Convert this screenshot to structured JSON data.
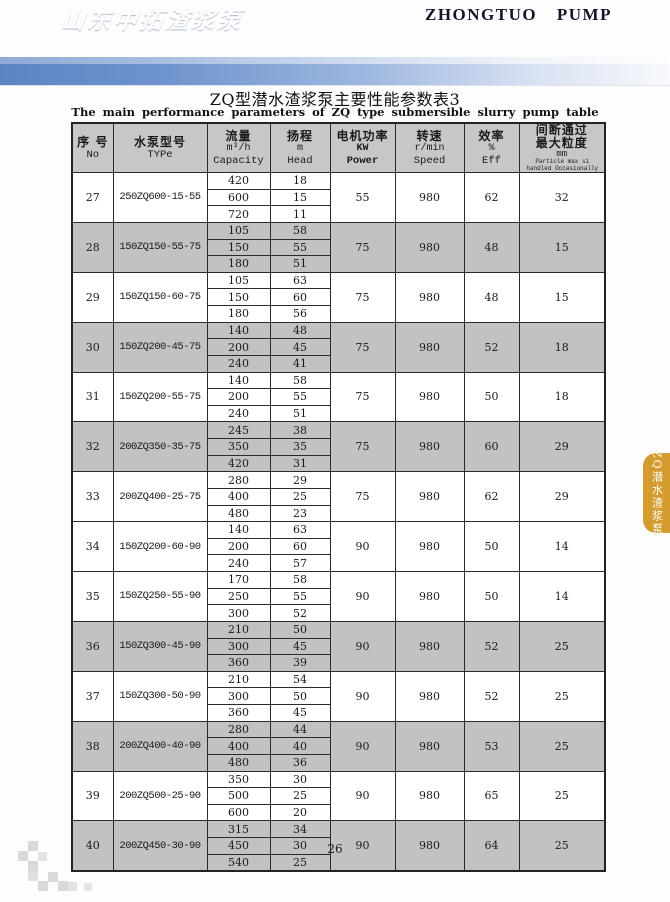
{
  "brand": {
    "logo_cn": "山东中拓渣浆泵",
    "name_en": "ZHONGTUO  PUMP"
  },
  "titles": {
    "cn": "ZQ型潜水渣浆泵主要性能参数表3",
    "en": "The main performance parameters of ZQ type submersible slurry pump table"
  },
  "side_tab": {
    "label": "ZQ潜水渣浆泵",
    "color": "#d49b2e"
  },
  "footer": {
    "page_number": "26"
  },
  "colors": {
    "band_blue": "#5c85c3",
    "header_gray": "#c7c7c7",
    "row_gray": "#c2c2c2",
    "brand_text": "#14142c"
  },
  "table": {
    "headers": {
      "no_cn": "序 号",
      "no_en": "No",
      "type_cn": "水泵型号",
      "type_en": "TYPe",
      "capacity_cn": "流量",
      "capacity_unit": "m³/h",
      "capacity_en": "Capacity",
      "head_cn": "扬程",
      "head_unit": "m",
      "head_en": "Head",
      "power_cn": "电机功率",
      "power_unit": "KW",
      "power_en": "Power",
      "speed_cn": "转速",
      "speed_unit": "r/min",
      "speed_en": "Speed",
      "eff_cn": "效率",
      "eff_unit": "%",
      "eff_en": "Eff",
      "particle_cn1": "间断通过",
      "particle_cn2": "最大粒度",
      "particle_unit": "mm",
      "particle_en1": "Particle max si",
      "particle_en2": "handled Occasionally"
    },
    "rows": [
      {
        "no": "27",
        "type": "250ZQ600-15-55",
        "capacity": [
          "420",
          "600",
          "720"
        ],
        "head": [
          "18",
          "15",
          "11"
        ],
        "power": "55",
        "speed": "980",
        "eff": "62",
        "particle": "32",
        "shaded": false
      },
      {
        "no": "28",
        "type": "150ZQ150-55-75",
        "capacity": [
          "105",
          "150",
          "180"
        ],
        "head": [
          "58",
          "55",
          "51"
        ],
        "power": "75",
        "speed": "980",
        "eff": "48",
        "particle": "15",
        "shaded": true
      },
      {
        "no": "29",
        "type": "150ZQ150-60-75",
        "capacity": [
          "105",
          "150",
          "180"
        ],
        "head": [
          "63",
          "60",
          "56"
        ],
        "power": "75",
        "speed": "980",
        "eff": "48",
        "particle": "15",
        "shaded": false
      },
      {
        "no": "30",
        "type": "150ZQ200-45-75",
        "capacity": [
          "140",
          "200",
          "240"
        ],
        "head": [
          "48",
          "45",
          "41"
        ],
        "power": "75",
        "speed": "980",
        "eff": "52",
        "particle": "18",
        "shaded": true
      },
      {
        "no": "31",
        "type": "150ZQ200-55-75",
        "capacity": [
          "140",
          "200",
          "240"
        ],
        "head": [
          "58",
          "55",
          "51"
        ],
        "power": "75",
        "speed": "980",
        "eff": "50",
        "particle": "18",
        "shaded": false
      },
      {
        "no": "32",
        "type": "200ZQ350-35-75",
        "capacity": [
          "245",
          "350",
          "420"
        ],
        "head": [
          "38",
          "35",
          "31"
        ],
        "power": "75",
        "speed": "980",
        "eff": "60",
        "particle": "29",
        "shaded": true
      },
      {
        "no": "33",
        "type": "200ZQ400-25-75",
        "capacity": [
          "280",
          "400",
          "480"
        ],
        "head": [
          "29",
          "25",
          "23"
        ],
        "power": "75",
        "speed": "980",
        "eff": "62",
        "particle": "29",
        "shaded": false
      },
      {
        "no": "34",
        "type": "150ZQ200-60-90",
        "capacity": [
          "140",
          "200",
          "240"
        ],
        "head": [
          "63",
          "60",
          "57"
        ],
        "power": "90",
        "speed": "980",
        "eff": "50",
        "particle": "14",
        "shaded": false
      },
      {
        "no": "35",
        "type": "150ZQ250-55-90",
        "capacity": [
          "170",
          "250",
          "300"
        ],
        "head": [
          "58",
          "55",
          "52"
        ],
        "power": "90",
        "speed": "980",
        "eff": "50",
        "particle": "14",
        "shaded": false
      },
      {
        "no": "36",
        "type": "150ZQ300-45-90",
        "capacity": [
          "210",
          "300",
          "360"
        ],
        "head": [
          "50",
          "45",
          "39"
        ],
        "power": "90",
        "speed": "980",
        "eff": "52",
        "particle": "25",
        "shaded": true
      },
      {
        "no": "37",
        "type": "150ZQ300-50-90",
        "capacity": [
          "210",
          "300",
          "360"
        ],
        "head": [
          "54",
          "50",
          "45"
        ],
        "power": "90",
        "speed": "980",
        "eff": "52",
        "particle": "25",
        "shaded": false
      },
      {
        "no": "38",
        "type": "200ZQ400-40-90",
        "capacity": [
          "280",
          "400",
          "480"
        ],
        "head": [
          "44",
          "40",
          "36"
        ],
        "power": "90",
        "speed": "980",
        "eff": "53",
        "particle": "25",
        "shaded": true
      },
      {
        "no": "39",
        "type": "200ZQ500-25-90",
        "capacity": [
          "350",
          "500",
          "600"
        ],
        "head": [
          "30",
          "25",
          "20"
        ],
        "power": "90",
        "speed": "980",
        "eff": "65",
        "particle": "25",
        "shaded": false
      },
      {
        "no": "40",
        "type": "200ZQ450-30-90",
        "capacity": [
          "315",
          "450",
          "540"
        ],
        "head": [
          "34",
          "30",
          "25"
        ],
        "power": "90",
        "speed": "980",
        "eff": "64",
        "particle": "25",
        "shaded": true
      }
    ]
  }
}
